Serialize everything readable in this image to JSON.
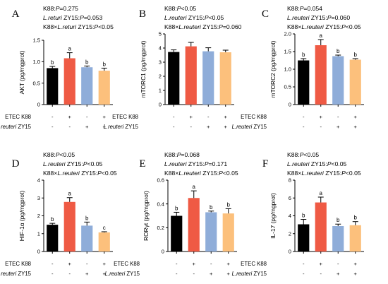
{
  "bar_colors": [
    "#000000",
    "#ef5a44",
    "#8fadd9",
    "#fcc07c"
  ],
  "row_labels": {
    "etec": "ETEC K88",
    "lreu_italic": "L.reuteri",
    "lreu_rest": " ZY15"
  },
  "chart_data": [
    {
      "type": "bar",
      "panel": "A",
      "ylabel": "AKT (pg/mgprot)",
      "ylim": [
        0,
        1.5
      ],
      "yticks": [
        "0",
        "0.5",
        "1.0",
        "1.5"
      ],
      "stats": [
        [
          {
            "t": "K88:",
            "i": false
          },
          {
            "t": "P",
            "i": true
          },
          {
            "t": "=0.275",
            "i": false
          }
        ],
        [
          {
            "t": "L.returi",
            "i": true
          },
          {
            "t": " ZY15:",
            "i": false
          },
          {
            "t": "P",
            "i": true
          },
          {
            "t": "=0.053",
            "i": false
          }
        ],
        [
          {
            "t": "K88×",
            "i": false
          },
          {
            "t": "L.returi",
            "i": true
          },
          {
            "t": " ZY15:",
            "i": false
          },
          {
            "t": "P",
            "i": true
          },
          {
            "t": "<0.05",
            "i": false
          }
        ]
      ],
      "etec": [
        "-",
        "+",
        "-",
        "+"
      ],
      "lreu": [
        "-",
        "-",
        "+",
        "+"
      ],
      "values": [
        0.85,
        1.08,
        0.87,
        0.79
      ],
      "errors": [
        0.04,
        0.13,
        0.03,
        0.06
      ],
      "letters": [
        "b",
        "a",
        "b",
        "b"
      ]
    },
    {
      "type": "bar",
      "panel": "B",
      "ylabel": "mTORC1 (pg/mgprot)",
      "ylim": [
        0,
        5
      ],
      "yticks": [
        "0",
        "1",
        "2",
        "3",
        "4",
        "5"
      ],
      "stats": [
        [
          {
            "t": "K88:",
            "i": false
          },
          {
            "t": "P",
            "i": true
          },
          {
            "t": "<0.05",
            "i": false
          }
        ],
        [
          {
            "t": "L.reuteri",
            "i": true
          },
          {
            "t": " ZY15:",
            "i": false
          },
          {
            "t": "P",
            "i": true
          },
          {
            "t": "<0.05",
            "i": false
          }
        ],
        [
          {
            "t": "K88×",
            "i": false
          },
          {
            "t": "L.reuteri",
            "i": true
          },
          {
            "t": " ZY15:",
            "i": false
          },
          {
            "t": "P",
            "i": true
          },
          {
            "t": "=0.060",
            "i": false
          }
        ]
      ],
      "etec": [
        "-",
        "+",
        "-",
        "+"
      ],
      "lreu": [
        "-",
        "-",
        "+",
        "+"
      ],
      "values": [
        3.72,
        4.12,
        3.77,
        3.7
      ],
      "errors": [
        0.15,
        0.28,
        0.25,
        0.15
      ],
      "letters": [
        "",
        "",
        "",
        ""
      ]
    },
    {
      "type": "bar",
      "panel": "C",
      "ylabel": "mTORC2 (pg/mgprot)",
      "ylim": [
        0,
        2.0
      ],
      "yticks": [
        "0",
        "0.5",
        "1.0",
        "1.5",
        "2.0"
      ],
      "stats": [
        [
          {
            "t": "K88:",
            "i": false
          },
          {
            "t": "P",
            "i": true
          },
          {
            "t": "=0.054",
            "i": false
          }
        ],
        [
          {
            "t": "L.reuteri",
            "i": true
          },
          {
            "t": " ZY15:",
            "i": false
          },
          {
            "t": "P",
            "i": true
          },
          {
            "t": "=0.060",
            "i": false
          }
        ],
        [
          {
            "t": "K88×",
            "i": false
          },
          {
            "t": "L.reuteri",
            "i": true
          },
          {
            "t": " ZY15:",
            "i": false
          },
          {
            "t": "P",
            "i": true
          },
          {
            "t": "<0.05",
            "i": false
          }
        ]
      ],
      "etec": [
        "-",
        "+",
        "-",
        "+"
      ],
      "lreu": [
        "-",
        "-",
        "+",
        "+"
      ],
      "values": [
        1.25,
        1.68,
        1.37,
        1.27
      ],
      "errors": [
        0.05,
        0.16,
        0.03,
        0.03
      ],
      "letters": [
        "b",
        "a",
        "b",
        "b"
      ]
    },
    {
      "type": "bar",
      "panel": "D",
      "ylabel": "HIF-1α (pg/mgprot)",
      "ylim": [
        0,
        4
      ],
      "yticks": [
        "0",
        "1",
        "2",
        "3",
        "4"
      ],
      "stats": [
        [
          {
            "t": "K88:",
            "i": false
          },
          {
            "t": "P",
            "i": true
          },
          {
            "t": "<0.05",
            "i": false
          }
        ],
        [
          {
            "t": "L.reuteri",
            "i": true
          },
          {
            "t": " ZY15:",
            "i": false
          },
          {
            "t": "P",
            "i": true
          },
          {
            "t": "<0.05",
            "i": false
          }
        ],
        [
          {
            "t": "K88×",
            "i": false
          },
          {
            "t": "L.reuteri",
            "i": true
          },
          {
            "t": " ZY15:",
            "i": false
          },
          {
            "t": "P",
            "i": true
          },
          {
            "t": "<0.05",
            "i": false
          }
        ]
      ],
      "etec": [
        "-",
        "+",
        "-",
        "+"
      ],
      "lreu": [
        "-",
        "-",
        "+",
        "+"
      ],
      "values": [
        1.5,
        2.78,
        1.45,
        1.07
      ],
      "errors": [
        0.08,
        0.24,
        0.2,
        0.04
      ],
      "letters": [
        "b",
        "a",
        "b",
        "c"
      ]
    },
    {
      "type": "bar",
      "panel": "E",
      "ylabel": "RORγt (pg/mgprot)",
      "ylim": [
        0,
        0.6
      ],
      "yticks": [
        "0",
        "0.2",
        "0.4",
        "0.6"
      ],
      "stats": [
        [
          {
            "t": "K88:",
            "i": false
          },
          {
            "t": "P",
            "i": true
          },
          {
            "t": "=0.068",
            "i": false
          }
        ],
        [
          {
            "t": "L.reuteri",
            "i": true
          },
          {
            "t": " ZY15:",
            "i": false
          },
          {
            "t": "P",
            "i": true
          },
          {
            "t": "=0.171",
            "i": false
          }
        ],
        [
          {
            "t": "K88×",
            "i": false
          },
          {
            "t": "L.reuteri",
            "i": true
          },
          {
            "t": " ZY15:",
            "i": false
          },
          {
            "t": "P",
            "i": true
          },
          {
            "t": "<0.05",
            "i": false
          }
        ]
      ],
      "etec": [
        "-",
        "+",
        "-",
        "+"
      ],
      "lreu": [
        "-",
        "-",
        "+",
        "+"
      ],
      "values": [
        0.3,
        0.45,
        0.33,
        0.32
      ],
      "errors": [
        0.03,
        0.06,
        0.01,
        0.04
      ],
      "letters": [
        "b",
        "a",
        "b",
        "b"
      ]
    },
    {
      "type": "bar",
      "panel": "F",
      "ylabel": "IL-17 (pg/mgprot)",
      "ylim": [
        0,
        8
      ],
      "yticks": [
        "0",
        "2",
        "4",
        "6",
        "8"
      ],
      "stats": [
        [
          {
            "t": "K88:",
            "i": false
          },
          {
            "t": "P",
            "i": true
          },
          {
            "t": "<0.05",
            "i": false
          }
        ],
        [
          {
            "t": "L.reuteri",
            "i": true
          },
          {
            "t": " ZY15:",
            "i": false
          },
          {
            "t": "P",
            "i": true
          },
          {
            "t": "<0.05",
            "i": false
          }
        ],
        [
          {
            "t": "K88×",
            "i": false
          },
          {
            "t": "L.reuteri",
            "i": true
          },
          {
            "t": " ZY15:",
            "i": false
          },
          {
            "t": "P",
            "i": true
          },
          {
            "t": "<0.05",
            "i": false
          }
        ]
      ],
      "etec": [
        "-",
        "+",
        "-",
        "+"
      ],
      "lreu": [
        "-",
        "-",
        "+",
        "+"
      ],
      "values": [
        3.05,
        5.5,
        2.85,
        2.95
      ],
      "errors": [
        0.55,
        0.6,
        0.22,
        0.4
      ],
      "letters": [
        "b",
        "a",
        "b",
        "b"
      ]
    }
  ]
}
